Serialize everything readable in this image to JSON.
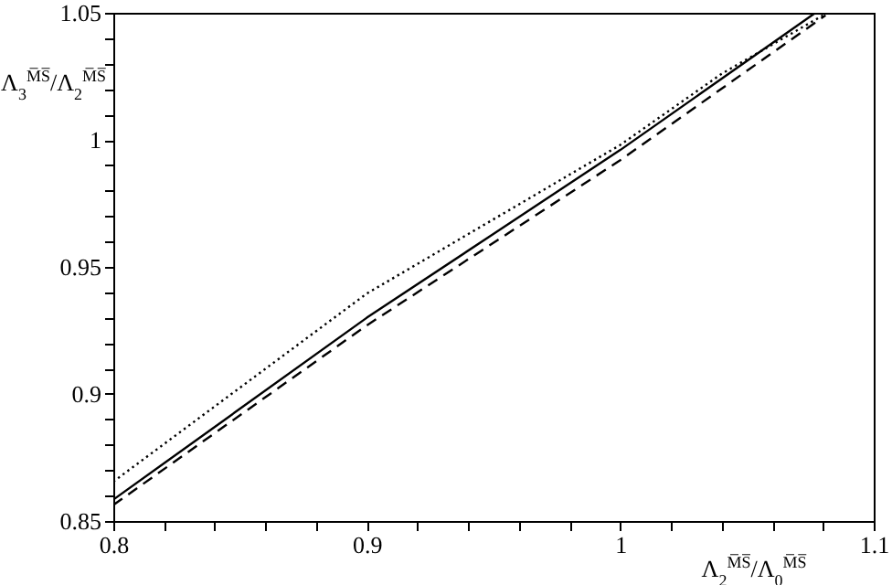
{
  "chart_data": {
    "type": "line",
    "xlabel": "Λ$_{2}$$^{M̅S̅}$/Λ$_{0}$$^{M̅S̅}$",
    "ylabel": "Λ$_{3}$$^{M̅S̅}$/Λ$_{2}$$^{M̅S̅}$",
    "series": [
      {
        "color": "#000000",
        "line_style": "solid",
        "x": [
          0.8,
          0.9,
          1.0,
          1.077
        ],
        "values": [
          0.8584,
          0.93,
          0.996,
          1.05
        ]
      },
      {
        "color": "#000000",
        "line_style": "dashed",
        "x": [
          0.8,
          0.9,
          1.0,
          1.081
        ],
        "values": [
          0.8563,
          0.927,
          0.992,
          1.049
        ]
      },
      {
        "color": "#000000",
        "line_style": "dotted",
        "x": [
          0.8,
          0.9,
          1.0,
          1.04,
          1.08
        ],
        "values": [
          0.8655,
          0.9395,
          0.998,
          1.026,
          1.049
        ]
      }
    ],
    "xlim": [
      0.8,
      1.1
    ],
    "xticks": [
      0.8,
      {
        "value": 0.82,
        "label": null
      },
      {
        "value": 0.84,
        "label": null
      },
      {
        "value": 0.86,
        "label": null
      },
      {
        "value": 0.88,
        "label": null
      },
      0.9,
      {
        "value": 0.92,
        "label": null
      },
      {
        "value": 0.94,
        "label": null
      },
      {
        "value": 0.96,
        "label": null
      },
      {
        "value": 0.98,
        "label": null
      },
      {
        "value": 1,
        "label": "1"
      },
      {
        "value": 1.02,
        "label": null
      },
      {
        "value": 1.04,
        "label": null
      },
      {
        "value": 1.06,
        "label": null
      },
      {
        "value": 1.08,
        "label": null
      },
      1.1
    ],
    "ylim": [
      0.85,
      1.05
    ],
    "yticks": [
      0.85,
      {
        "value": 0.86,
        "label": null
      },
      {
        "value": 0.87,
        "label": null
      },
      {
        "value": 0.88,
        "label": null
      },
      {
        "value": 0.89,
        "label": null
      },
      0.9,
      {
        "value": 0.91,
        "label": null
      },
      {
        "value": 0.92,
        "label": null
      },
      {
        "value": 0.93,
        "label": null
      },
      {
        "value": 0.94,
        "label": null
      },
      0.95,
      {
        "value": 0.96,
        "label": null
      },
      {
        "value": 0.97,
        "label": null
      },
      {
        "value": 0.98,
        "label": null
      },
      {
        "value": 0.99,
        "label": null
      },
      {
        "value": 1,
        "label": "1"
      },
      {
        "value": 1.01,
        "label": null
      },
      {
        "value": 1.02,
        "label": null
      },
      {
        "value": 1.03,
        "label": null
      },
      {
        "value": 1.04,
        "label": null
      },
      1.05
    ]
  }
}
